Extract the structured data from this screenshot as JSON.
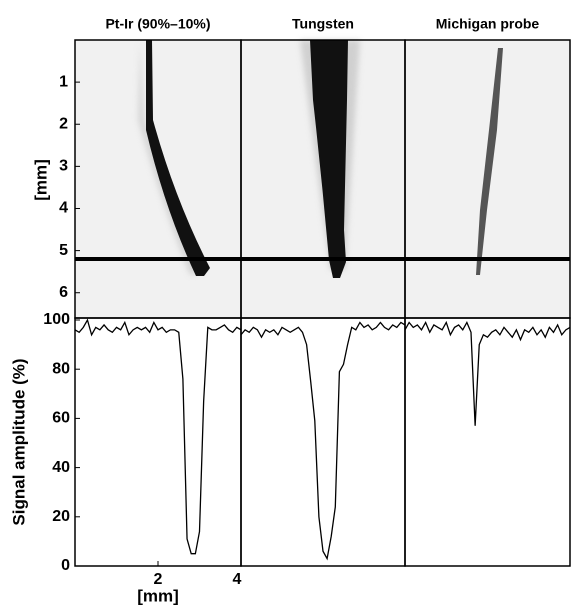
{
  "chart_data": [
    {
      "type": "image",
      "panel_titles": [
        "Pt-Ir (90%–10%)",
        "Tungsten",
        "Michigan probe"
      ],
      "ylabel": "[mm]",
      "ylim": [
        0,
        6.6
      ],
      "yticks": [
        1,
        2,
        3,
        4,
        5,
        6
      ],
      "hline": 5.2
    },
    {
      "type": "line",
      "ylabel": "Signal amplitude (%)",
      "xlabel": "[mm]",
      "xlim": [
        0,
        4
      ],
      "xticks": [
        2,
        4
      ],
      "ylim": [
        0,
        100
      ],
      "yticks": [
        0,
        20,
        40,
        60,
        80,
        100
      ],
      "x": [
        0,
        0.1,
        0.2,
        0.3,
        0.4,
        0.5,
        0.6,
        0.7,
        0.8,
        0.9,
        1.0,
        1.1,
        1.2,
        1.3,
        1.4,
        1.5,
        1.6,
        1.7,
        1.8,
        1.9,
        2.0,
        2.1,
        2.2,
        2.3,
        2.4,
        2.5,
        2.6,
        2.7,
        2.8,
        2.9,
        3.0,
        3.1,
        3.2,
        3.3,
        3.4,
        3.5,
        3.6,
        3.7,
        3.8,
        3.9,
        4.0
      ],
      "series": [
        {
          "color": "#000000",
          "values": [
            96,
            95,
            97,
            100,
            94,
            97,
            96,
            98,
            96,
            95,
            97,
            96,
            99,
            94,
            96,
            97,
            96,
            97,
            95,
            99,
            96,
            97,
            95,
            96,
            96,
            95,
            76,
            11,
            5,
            5,
            14,
            67,
            97,
            96,
            96,
            97,
            98,
            96,
            95,
            97,
            96
          ]
        },
        {
          "color": "#000000",
          "values": [
            94,
            96,
            95,
            97,
            96,
            93,
            96,
            95,
            96,
            94,
            97,
            96,
            95,
            96,
            97,
            95,
            90,
            75,
            59,
            20,
            6,
            3,
            12,
            24,
            79,
            82,
            90,
            97,
            96,
            99,
            97,
            98,
            96,
            97,
            99,
            97,
            96,
            98,
            97,
            99,
            98
          ]
        },
        {
          "color": "#000000",
          "values": [
            96,
            99,
            97,
            98,
            96,
            99,
            95,
            98,
            97,
            96,
            99,
            94,
            97,
            98,
            96,
            99,
            95,
            57,
            90,
            94,
            93,
            95,
            96,
            94,
            97,
            95,
            93,
            96,
            92,
            96,
            95,
            97,
            94,
            96,
            93,
            97,
            95,
            98,
            94,
            96,
            97
          ]
        }
      ]
    }
  ]
}
